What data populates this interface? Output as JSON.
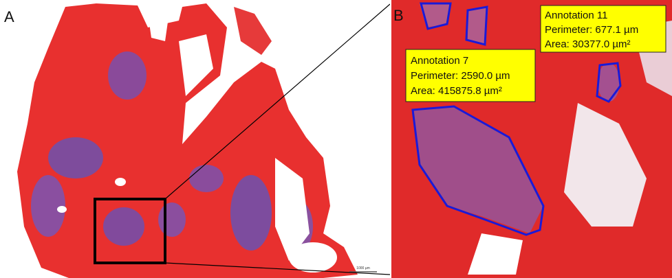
{
  "panels": {
    "a": {
      "label": "A",
      "scale_bar": "1000 µm"
    },
    "b": {
      "label": "B",
      "annotations": [
        {
          "name": "Annotation 11",
          "perimeter": "Perimeter: 677.1 µm",
          "area": "Area: 30377.0 µm²"
        },
        {
          "name": "Annotation 7",
          "perimeter": "Perimeter: 2590.0 µm",
          "area": "Area: 415875.8 µm²"
        }
      ]
    }
  }
}
